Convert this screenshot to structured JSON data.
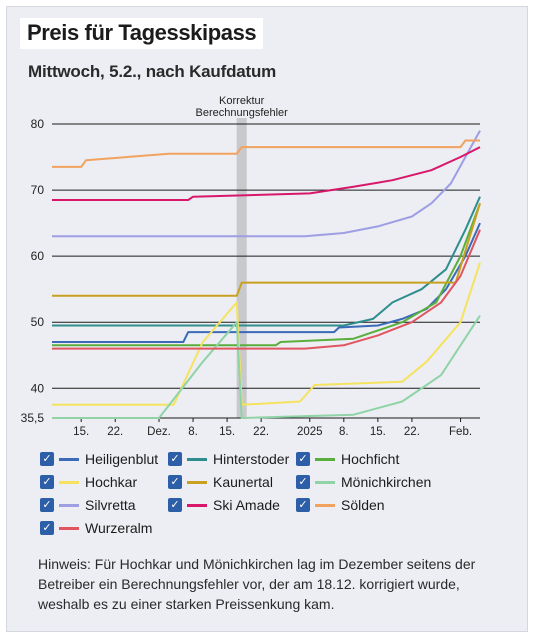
{
  "title": "Preis für Tagesskipass",
  "subtitle": "Mittwoch, 5.2., nach Kaufdatum",
  "note": "Hinweis: Für Hochkar und Mönichkirchen lag im Dezember seitens der Betreiber ein Berechnungsfehler vor, der am 18.12. korrigiert wurde, weshalb es zu einer starken Preissenkung kam.",
  "chart_data": {
    "type": "line",
    "title": "Preis für Tagesskipass",
    "subtitle": "Mittwoch, 5.2., nach Kaufdatum",
    "x_start": "2024-11-09",
    "x_end": "2025-02-05",
    "ylim": [
      35.5,
      80
    ],
    "y_ticks": [
      40,
      50,
      60,
      70,
      80
    ],
    "y_min_label": "35,5",
    "x_ticks": [
      {
        "date": "2024-11-15",
        "label": "15."
      },
      {
        "date": "2024-11-22",
        "label": "22."
      },
      {
        "date": "2024-12-01",
        "label": "Dez."
      },
      {
        "date": "2024-12-08",
        "label": "8."
      },
      {
        "date": "2024-12-15",
        "label": "15."
      },
      {
        "date": "2024-12-22",
        "label": "22."
      },
      {
        "date": "2025-01-01",
        "label": "2025"
      },
      {
        "date": "2025-01-08",
        "label": "8."
      },
      {
        "date": "2025-01-15",
        "label": "15."
      },
      {
        "date": "2025-01-22",
        "label": "22."
      },
      {
        "date": "2025-02-01",
        "label": "Feb."
      }
    ],
    "annotation": {
      "date": "2024-12-18",
      "label_lines": [
        "Korrektur",
        "Berechnungsfehler"
      ]
    },
    "grid": true,
    "legend": "bottom",
    "series": [
      {
        "name": "Heiligenblut",
        "color": "#3b6bb8",
        "points": [
          [
            "2024-11-09",
            47
          ],
          [
            "2024-12-06",
            47
          ],
          [
            "2024-12-07",
            48.5
          ],
          [
            "2025-01-06",
            48.5
          ],
          [
            "2025-01-07",
            49.2
          ],
          [
            "2025-01-15",
            49.5
          ],
          [
            "2025-01-20",
            50.5
          ],
          [
            "2025-01-25",
            52
          ],
          [
            "2025-01-29",
            55
          ],
          [
            "2025-02-02",
            60
          ],
          [
            "2025-02-05",
            65
          ]
        ]
      },
      {
        "name": "Hinterstoder",
        "color": "#2f8d8d",
        "points": [
          [
            "2024-11-09",
            49.5
          ],
          [
            "2025-01-08",
            49.5
          ],
          [
            "2025-01-14",
            50.5
          ],
          [
            "2025-01-18",
            53
          ],
          [
            "2025-01-24",
            55
          ],
          [
            "2025-01-29",
            58
          ],
          [
            "2025-02-02",
            64
          ],
          [
            "2025-02-05",
            69
          ]
        ]
      },
      {
        "name": "Hochficht",
        "color": "#5aae3c",
        "points": [
          [
            "2024-11-09",
            46.5
          ],
          [
            "2024-12-25",
            46.5
          ],
          [
            "2024-12-26",
            47
          ],
          [
            "2025-01-10",
            47.5
          ],
          [
            "2025-01-20",
            50
          ],
          [
            "2025-01-27",
            53
          ],
          [
            "2025-02-01",
            60
          ],
          [
            "2025-02-05",
            68
          ]
        ]
      },
      {
        "name": "Hochkar",
        "color": "#f5e35f",
        "points": [
          [
            "2024-11-09",
            37.5
          ],
          [
            "2024-12-04",
            37.5
          ],
          [
            "2024-12-10",
            47
          ],
          [
            "2024-12-17",
            53
          ],
          [
            "2024-12-18",
            37.5
          ],
          [
            "2024-12-30",
            38
          ],
          [
            "2025-01-02",
            40.5
          ],
          [
            "2025-01-20",
            41
          ],
          [
            "2025-01-25",
            44
          ],
          [
            "2025-02-01",
            50
          ],
          [
            "2025-02-05",
            59
          ]
        ]
      },
      {
        "name": "Kaunertal",
        "color": "#c9a01f",
        "points": [
          [
            "2024-11-09",
            54
          ],
          [
            "2024-12-17",
            54
          ],
          [
            "2024-12-18",
            56
          ],
          [
            "2025-01-31",
            56
          ],
          [
            "2025-02-05",
            68
          ]
        ]
      },
      {
        "name": "Mönichkirchen",
        "color": "#8fd3a6",
        "points": [
          [
            "2024-11-09",
            35.5
          ],
          [
            "2024-12-01",
            35.5
          ],
          [
            "2024-12-10",
            44
          ],
          [
            "2024-12-17",
            50
          ],
          [
            "2024-12-18",
            35.5
          ],
          [
            "2025-01-10",
            36
          ],
          [
            "2025-01-20",
            38
          ],
          [
            "2025-01-28",
            42
          ],
          [
            "2025-02-05",
            51
          ]
        ]
      },
      {
        "name": "Silvretta",
        "color": "#9e9ee4",
        "points": [
          [
            "2024-11-09",
            63
          ],
          [
            "2024-12-31",
            63
          ],
          [
            "2025-01-08",
            63.5
          ],
          [
            "2025-01-15",
            64.5
          ],
          [
            "2025-01-22",
            66
          ],
          [
            "2025-01-26",
            68
          ],
          [
            "2025-01-30",
            71
          ],
          [
            "2025-02-02",
            75
          ],
          [
            "2025-02-05",
            79
          ]
        ]
      },
      {
        "name": "Ski Amade",
        "color": "#d8176b",
        "points": [
          [
            "2024-11-09",
            68.5
          ],
          [
            "2024-12-07",
            68.5
          ],
          [
            "2024-12-08",
            69
          ],
          [
            "2025-01-01",
            69.5
          ],
          [
            "2025-01-10",
            70.5
          ],
          [
            "2025-01-18",
            71.5
          ],
          [
            "2025-01-26",
            73
          ],
          [
            "2025-02-01",
            75
          ],
          [
            "2025-02-05",
            76.5
          ]
        ]
      },
      {
        "name": "Sölden",
        "color": "#f1a25f",
        "points": [
          [
            "2024-11-09",
            73.5
          ],
          [
            "2024-11-15",
            73.5
          ],
          [
            "2024-11-16",
            74.5
          ],
          [
            "2024-12-03",
            75.5
          ],
          [
            "2024-12-17",
            75.5
          ],
          [
            "2024-12-18",
            76.5
          ],
          [
            "2025-02-01",
            76.5
          ],
          [
            "2025-02-02",
            77.5
          ],
          [
            "2025-02-05",
            77.5
          ]
        ]
      },
      {
        "name": "Wurzeralm",
        "color": "#e05560",
        "points": [
          [
            "2024-11-09",
            46
          ],
          [
            "2024-12-31",
            46
          ],
          [
            "2025-01-08",
            46.5
          ],
          [
            "2025-01-15",
            48
          ],
          [
            "2025-01-22",
            50
          ],
          [
            "2025-01-28",
            53
          ],
          [
            "2025-02-01",
            57
          ],
          [
            "2025-02-05",
            64
          ]
        ]
      }
    ]
  }
}
